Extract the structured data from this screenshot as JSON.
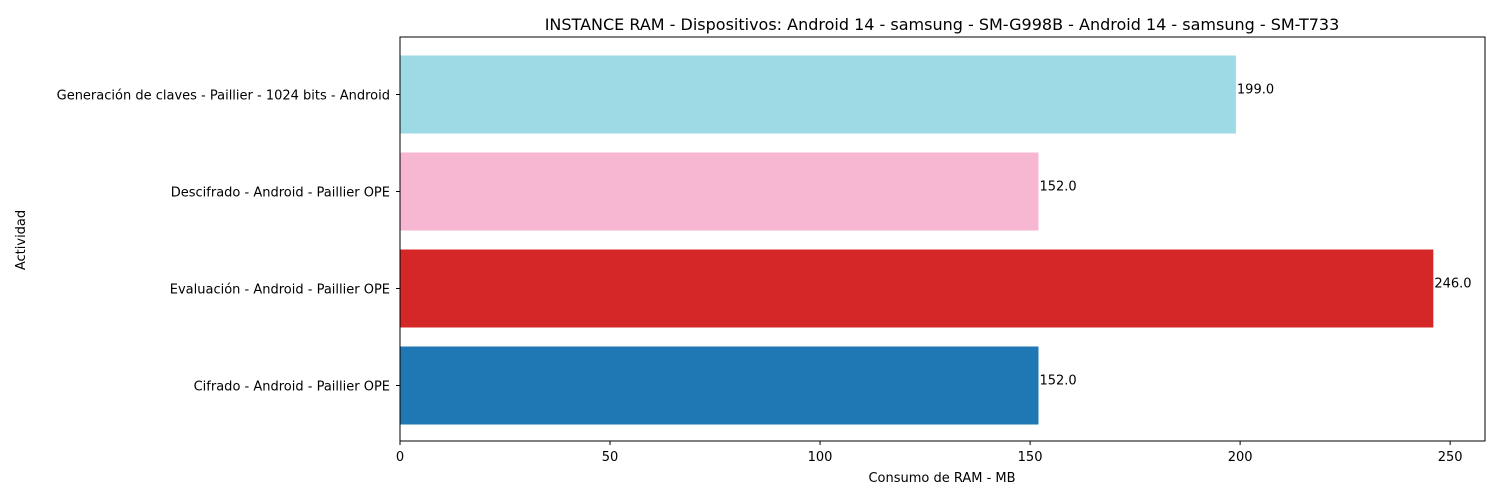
{
  "chart_data": {
    "type": "bar",
    "orientation": "horizontal",
    "title": "INSTANCE RAM - Dispositivos: Android 14 - samsung - SM-G998B - Android 14 - samsung - SM-T733",
    "xlabel": "Consumo de RAM - MB",
    "ylabel": "Actividad",
    "categories": [
      "Generación de claves - Paillier - 1024 bits - Android",
      "Descifrado - Android - Paillier OPE",
      "Evaluación - Android - Paillier OPE",
      "Cifrado - Android - Paillier OPE"
    ],
    "values": [
      199.0,
      152.0,
      246.0,
      152.0
    ],
    "value_labels": [
      "199.0",
      "152.0",
      "246.0",
      "152.0"
    ],
    "colors": [
      "#9edae5",
      "#f7b6d2",
      "#d62728",
      "#1f77b4"
    ],
    "xlim": [
      0,
      258.3
    ],
    "xticks": [
      0,
      50,
      100,
      150,
      200,
      250
    ],
    "xtick_labels": [
      "0",
      "50",
      "100",
      "150",
      "200",
      "250"
    ],
    "grid": false,
    "legend": "none"
  }
}
